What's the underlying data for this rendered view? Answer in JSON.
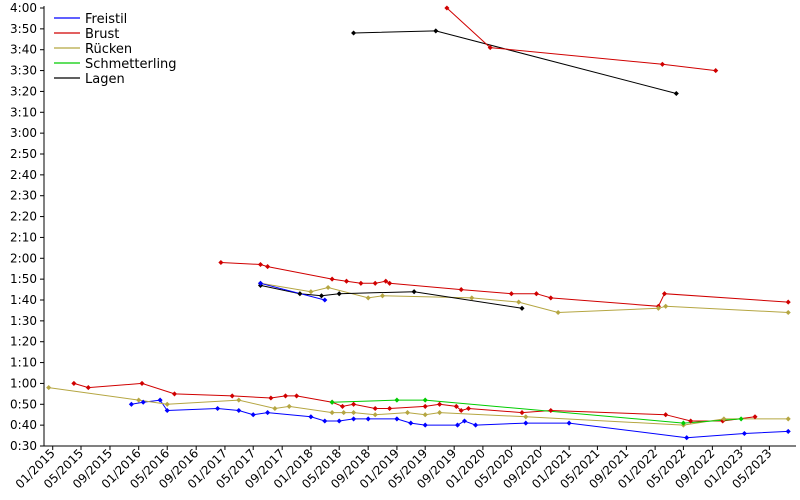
{
  "chart_data": {
    "type": "line",
    "title": "",
    "xlabel": "",
    "ylabel": "",
    "x_axis": {
      "ticks": [
        "01/2015",
        "05/2015",
        "09/2015",
        "01/2016",
        "05/2016",
        "09/2016",
        "01/2017",
        "05/2017",
        "09/2017",
        "01/2018",
        "05/2018",
        "09/2018",
        "01/2019",
        "05/2019",
        "09/2019",
        "01/2020",
        "05/2020",
        "09/2020",
        "01/2021",
        "05/2021",
        "09/2021",
        "01/2022",
        "05/2022",
        "09/2022",
        "01/2023",
        "05/2023"
      ],
      "range": [
        "2014-11-25",
        "2023-08-05"
      ]
    },
    "y_axis": {
      "ticks": [
        "0:30",
        "0:40",
        "0:50",
        "1:00",
        "1:10",
        "1:20",
        "1:30",
        "1:40",
        "1:50",
        "2:00",
        "2:10",
        "2:20",
        "2:30",
        "2:40",
        "2:50",
        "3:00",
        "3:10",
        "3:20",
        "3:30",
        "3:40",
        "3:50",
        "4:00"
      ],
      "range": [
        "0:30",
        "4:00"
      ]
    },
    "grid": false,
    "legend_position": "top-left",
    "series": [
      {
        "name": "Freistil",
        "color": "#0000ff",
        "points": [
          [
            "2015-12-01",
            "0:50"
          ],
          [
            "2016-01-20",
            "0:51"
          ],
          [
            "2016-04-01",
            "0:52"
          ],
          [
            "2016-05-01",
            "0:47"
          ],
          [
            "2016-12-01",
            "0:48"
          ],
          [
            "2017-03-01",
            "0:47"
          ],
          [
            "2017-05-01",
            "0:45"
          ],
          [
            "2017-07-01",
            "0:46"
          ],
          [
            "2018-01-01",
            "0:44"
          ],
          [
            "2018-03-01",
            "0:42"
          ],
          [
            "2018-05-01",
            "0:42"
          ],
          [
            "2018-07-01",
            "0:43"
          ],
          [
            "2018-09-01",
            "0:43"
          ],
          [
            "2019-01-01",
            "0:43"
          ],
          [
            "2019-03-01",
            "0:41"
          ],
          [
            "2019-05-01",
            "0:40"
          ],
          [
            "2019-09-15",
            "0:40"
          ],
          [
            "2019-10-15",
            "0:42"
          ],
          [
            "2019-12-01",
            "0:40"
          ],
          [
            "2020-07-01",
            "0:41"
          ],
          [
            "2021-01-01",
            "0:41"
          ],
          [
            "2022-05-15",
            "0:34"
          ],
          [
            "2023-01-15",
            "0:36"
          ],
          [
            "2023-07-20",
            "0:37"
          ]
        ]
      },
      {
        "name": "Brust",
        "color": "#d00000",
        "points": [
          [
            "2015-04-01",
            "1:00"
          ],
          [
            "2015-06-01",
            "0:58"
          ],
          [
            "2016-01-15",
            "1:00"
          ],
          [
            "2016-06-01",
            "0:55"
          ],
          [
            "2017-02-01",
            "0:54"
          ],
          [
            "2017-07-15",
            "0:53"
          ],
          [
            "2017-09-15",
            "0:54"
          ],
          [
            "2017-11-01",
            "0:54"
          ],
          [
            "2018-04-01",
            "0:51"
          ],
          [
            "2018-05-15",
            "0:49"
          ],
          [
            "2018-07-01",
            "0:50"
          ],
          [
            "2018-10-01",
            "0:48"
          ],
          [
            "2018-12-01",
            "0:48"
          ],
          [
            "2019-05-01",
            "0:49"
          ],
          [
            "2019-07-01",
            "0:50"
          ],
          [
            "2019-09-10",
            "0:49"
          ],
          [
            "2019-10-01",
            "0:47"
          ],
          [
            "2019-11-01",
            "0:48"
          ],
          [
            "2020-06-15",
            "0:46"
          ],
          [
            "2020-10-15",
            "0:47"
          ],
          [
            "2022-02-15",
            "0:45"
          ],
          [
            "2022-06-01",
            "0:42"
          ],
          [
            "2022-10-15",
            "0:42"
          ],
          [
            "2023-03-01",
            "0:44"
          ]
        ]
      },
      {
        "name": "Rücken",
        "color": "#b5a642",
        "points": [
          [
            "2014-12-15",
            "0:58"
          ],
          [
            "2016-01-01",
            "0:52"
          ],
          [
            "2016-05-01",
            "0:50"
          ],
          [
            "2017-03-01",
            "0:52"
          ],
          [
            "2017-08-01",
            "0:48"
          ],
          [
            "2017-10-01",
            "0:49"
          ],
          [
            "2018-04-01",
            "0:46"
          ],
          [
            "2018-05-20",
            "0:46"
          ],
          [
            "2018-07-01",
            "0:46"
          ],
          [
            "2018-10-01",
            "0:45"
          ],
          [
            "2019-02-15",
            "0:46"
          ],
          [
            "2019-05-01",
            "0:45"
          ],
          [
            "2019-07-01",
            "0:46"
          ],
          [
            "2020-07-01",
            "0:44"
          ],
          [
            "2022-05-01",
            "0:40"
          ],
          [
            "2022-10-20",
            "0:43"
          ],
          [
            "2023-07-20",
            "0:43"
          ]
        ]
      },
      {
        "name": "Schmetterling",
        "color": "#00cc00",
        "points": [
          [
            "2018-04-01",
            "0:51"
          ],
          [
            "2019-01-01",
            "0:52"
          ],
          [
            "2019-05-01",
            "0:52"
          ],
          [
            "2022-05-01",
            "0:41"
          ],
          [
            "2023-01-01",
            "0:43"
          ]
        ]
      },
      {
        "name": "Lagen",
        "color": "#000000",
        "points": [
          [
            "2018-07-01",
            "3:48"
          ],
          [
            "2019-06-15",
            "3:49"
          ],
          [
            "2022-04-01",
            "3:19"
          ]
        ]
      },
      {
        "name": "",
        "color": "#d00000",
        "points": [
          [
            "2019-08-01",
            "4:00"
          ],
          [
            "2020-02-01",
            "3:41"
          ],
          [
            "2022-02-01",
            "3:33"
          ],
          [
            "2022-09-15",
            "3:30"
          ]
        ]
      },
      {
        "name": "",
        "color": "#d00000",
        "points": [
          [
            "2016-12-15",
            "1:58"
          ],
          [
            "2017-06-01",
            "1:57"
          ],
          [
            "2017-07-01",
            "1:56"
          ],
          [
            "2018-04-01",
            "1:50"
          ],
          [
            "2018-06-01",
            "1:49"
          ],
          [
            "2018-08-01",
            "1:48"
          ],
          [
            "2018-10-01",
            "1:48"
          ],
          [
            "2018-11-15",
            "1:49"
          ],
          [
            "2018-12-01",
            "1:48"
          ],
          [
            "2019-10-01",
            "1:45"
          ],
          [
            "2020-05-01",
            "1:43"
          ],
          [
            "2020-08-15",
            "1:43"
          ],
          [
            "2020-10-15",
            "1:41"
          ],
          [
            "2022-01-15",
            "1:37"
          ],
          [
            "2022-02-10",
            "1:43"
          ],
          [
            "2023-07-20",
            "1:39"
          ]
        ]
      },
      {
        "name": "",
        "color": "#b5a642",
        "points": [
          [
            "2017-06-01",
            "1:48"
          ],
          [
            "2018-01-01",
            "1:44"
          ],
          [
            "2018-03-15",
            "1:46"
          ],
          [
            "2018-09-01",
            "1:41"
          ],
          [
            "2018-11-01",
            "1:42"
          ],
          [
            "2019-11-15",
            "1:41"
          ],
          [
            "2020-06-01",
            "1:39"
          ],
          [
            "2020-11-15",
            "1:34"
          ],
          [
            "2022-01-15",
            "1:36"
          ],
          [
            "2022-02-15",
            "1:37"
          ],
          [
            "2023-07-20",
            "1:34"
          ]
        ]
      },
      {
        "name": "",
        "color": "#000000",
        "points": [
          [
            "2017-06-01",
            "1:47"
          ],
          [
            "2017-11-15",
            "1:43"
          ],
          [
            "2018-02-15",
            "1:42"
          ],
          [
            "2018-05-01",
            "1:43"
          ],
          [
            "2019-03-15",
            "1:44"
          ],
          [
            "2020-06-15",
            "1:36"
          ]
        ]
      },
      {
        "name": "",
        "color": "#0000ff",
        "points": [
          [
            "2017-06-01",
            "1:48"
          ],
          [
            "2018-03-01",
            "1:40"
          ]
        ]
      }
    ]
  }
}
